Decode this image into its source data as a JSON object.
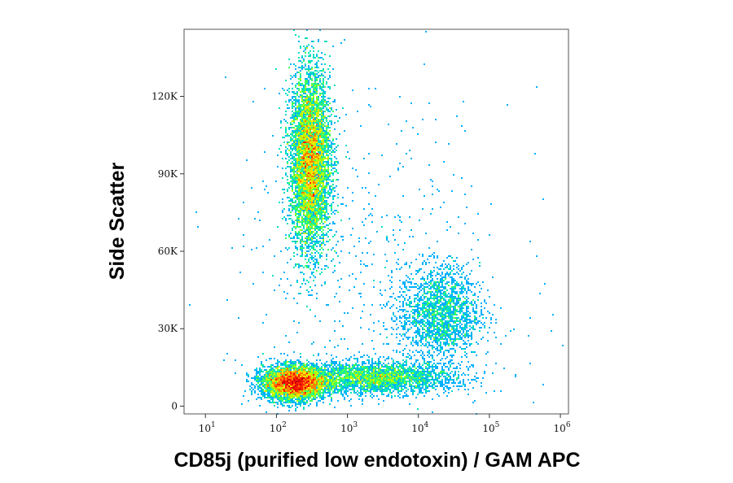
{
  "chart_data": {
    "type": "scatter",
    "title": "",
    "xlabel": "CD85j (purified low endotoxin) / GAM APC",
    "ylabel": "Side Scatter",
    "x_scale": "log",
    "xlim": [
      5,
      1300000
    ],
    "ylim": [
      -3000,
      146000
    ],
    "grid": false,
    "legend": "none",
    "x_ticks": [
      {
        "value": 10,
        "base": "10",
        "exp": "1"
      },
      {
        "value": 100,
        "base": "10",
        "exp": "2"
      },
      {
        "value": 1000,
        "base": "10",
        "exp": "3"
      },
      {
        "value": 10000,
        "base": "10",
        "exp": "4"
      },
      {
        "value": 100000,
        "base": "10",
        "exp": "5"
      },
      {
        "value": 1000000,
        "base": "10",
        "exp": "6"
      }
    ],
    "y_ticks": [
      {
        "value": 0,
        "label": "0"
      },
      {
        "value": 30000,
        "label": "30K"
      },
      {
        "value": 60000,
        "label": "60K"
      },
      {
        "value": 90000,
        "label": "90K"
      },
      {
        "value": 120000,
        "label": "120K"
      }
    ],
    "density_colors": [
      "#0000d8",
      "#0050ff",
      "#00b0ff",
      "#00e0c0",
      "#40ff60",
      "#b0ff00",
      "#ffe000",
      "#ff8000",
      "#ff2000",
      "#d00000"
    ],
    "populations": [
      {
        "name": "",
        "center_x": 300,
        "center_y": 95000,
        "spread_log_x": 0.14,
        "spread_y": 17000,
        "count": 9000,
        "peak": 0.55
      },
      {
        "name": "",
        "center_x": 180,
        "center_y": 9000,
        "spread_log_x": 0.22,
        "spread_y": 3200,
        "count": 6000,
        "peak": 1.0
      },
      {
        "name": "",
        "center_x": 2500,
        "center_y": 11000,
        "spread_log_x": 0.55,
        "spread_y": 3000,
        "count": 3000,
        "peak": 0.35
      },
      {
        "name": "",
        "center_x": 20000,
        "center_y": 36000,
        "spread_log_x": 0.28,
        "spread_y": 9000,
        "count": 2000,
        "peak": 0.25
      },
      {
        "name": "",
        "center_x": 2000,
        "center_y": 50000,
        "spread_log_x": 1.0,
        "spread_y": 35000,
        "count": 600,
        "peak": 0.02
      }
    ]
  }
}
